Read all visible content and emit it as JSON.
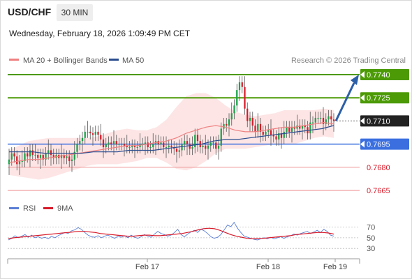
{
  "header": {
    "symbol": "USD/CHF",
    "timeframe": "30 MIN",
    "datetime": "Wednesday, February 18, 2026 1:09:49 PM CET"
  },
  "legend": {
    "ma20": "MA 20 + Bollinger Bands",
    "ma50": "MA 50",
    "credit": "Research © 2026 Trading Central"
  },
  "rsi_legend": {
    "rsi": "RSI",
    "ma": "9MA"
  },
  "colors": {
    "candle_up": "#19a34a",
    "candle_down": "#d81b2a",
    "ma20": "#f08080",
    "ma50": "#2a4d8f",
    "bollinger_fill": "#fde0e0",
    "resistance": "#4c9a05",
    "support_blue": "#3b6fe0",
    "support_red": "#f0a0a0",
    "current_price": "#222222",
    "arrow": "#2b5fa8",
    "rsi_line": "#5b7fd6",
    "rsi_ma": "#d81b2a"
  },
  "chart_data": [
    {
      "type": "candlestick",
      "symbol": "USD/CHF",
      "timeframe": "30 MIN",
      "ylim": [
        0.7655,
        0.7749
      ],
      "x_ticks": [
        "Feb 17",
        "Feb 18",
        "Feb 19"
      ],
      "close": [
        0.7685,
        0.7689,
        0.7687,
        0.7682,
        0.7684,
        0.7684,
        0.7689,
        0.7687,
        0.7691,
        0.7688,
        0.7688,
        0.7686,
        0.7688,
        0.7685,
        0.7689,
        0.7691,
        0.7688,
        0.7686,
        0.7688,
        0.7686,
        0.7688,
        0.7686,
        0.7687,
        0.7684,
        0.7685,
        0.769,
        0.7695,
        0.7697,
        0.7699,
        0.7703,
        0.7703,
        0.7702,
        0.7701,
        0.7703,
        0.7701,
        0.7698,
        0.7693,
        0.7695,
        0.7696,
        0.7695,
        0.7697,
        0.7695,
        0.7695,
        0.7695,
        0.7694,
        0.7693,
        0.7693,
        0.7694,
        0.7693,
        0.7693,
        0.7695,
        0.7695,
        0.7696,
        0.7693,
        0.7693,
        0.7695,
        0.7697,
        0.7695,
        0.7696,
        0.7693,
        0.7693,
        0.7694,
        0.7693,
        0.7692,
        0.769,
        0.7691,
        0.7695,
        0.7697,
        0.7695,
        0.7692,
        0.7693,
        0.7701,
        0.7697,
        0.7693,
        0.7694,
        0.7692,
        0.7694,
        0.7696,
        0.7696,
        0.7692,
        0.7694,
        0.7705,
        0.7708,
        0.7707,
        0.7711,
        0.7715,
        0.772,
        0.773,
        0.7735,
        0.7732,
        0.7718,
        0.771,
        0.7712,
        0.7707,
        0.7703,
        0.7708,
        0.7703,
        0.7701,
        0.7703,
        0.7704,
        0.7701,
        0.77,
        0.7698,
        0.7702,
        0.7699,
        0.7703,
        0.7706,
        0.7703,
        0.7706,
        0.7705,
        0.7707,
        0.7705,
        0.7707,
        0.7706,
        0.7702,
        0.7709,
        0.7709,
        0.7712,
        0.7712,
        0.7712,
        0.7708,
        0.7711,
        0.7713,
        0.7711,
        0.771
      ],
      "ohlc_note": "approximate closes read from the chart",
      "ma20": [
        0.7683,
        0.7684,
        0.7685,
        0.7685,
        0.7686,
        0.7687,
        0.7688,
        0.7689,
        0.769,
        0.7691,
        0.7692,
        0.7693,
        0.7694,
        0.7694,
        0.7695,
        0.7696,
        0.7697,
        0.7699,
        0.7702,
        0.7704,
        0.7706,
        0.7707,
        0.7706,
        0.7704,
        0.7703,
        0.7703,
        0.7704,
        0.7705,
        0.7706,
        0.7706,
        0.7707,
        0.7708,
        0.7709,
        0.7708
      ],
      "ma50": [
        0.769,
        0.769,
        0.769,
        0.7689,
        0.7689,
        0.7689,
        0.7689,
        0.769,
        0.769,
        0.769,
        0.7691,
        0.7691,
        0.7691,
        0.7692,
        0.7693,
        0.7694,
        0.7695,
        0.7697,
        0.7698,
        0.7698,
        0.7699,
        0.77,
        0.7701,
        0.7702,
        0.7703,
        0.7704,
        0.7705,
        0.7707
      ],
      "levels": [
        {
          "value": "0.7740",
          "style": "resistance"
        },
        {
          "value": "0.7725",
          "style": "resistance"
        },
        {
          "value": "0.7710",
          "style": "current"
        },
        {
          "value": "0.7695",
          "style": "support_blue"
        },
        {
          "value": "0.7680",
          "style": "support_red"
        },
        {
          "value": "0.7665",
          "style": "support_red"
        }
      ],
      "forecast_arrow": {
        "from": 0.771,
        "to": 0.774
      }
    },
    {
      "type": "line",
      "title": "RSI",
      "ylim": [
        25,
        80
      ],
      "yticks": [
        "70",
        "50",
        "30"
      ],
      "series": [
        {
          "name": "RSI",
          "values": [
            46,
            49,
            54,
            50,
            53,
            56,
            51,
            55,
            50,
            52,
            49,
            51,
            48,
            53,
            50,
            54,
            57,
            60,
            58,
            63,
            65,
            69,
            66,
            60,
            55,
            52,
            51,
            54,
            50,
            53,
            55,
            52,
            49,
            53,
            51,
            54,
            50,
            55,
            51,
            49,
            52,
            56,
            53,
            51,
            57,
            62,
            58,
            56,
            53,
            55,
            60,
            66,
            56,
            52,
            57,
            61,
            64,
            60,
            66,
            63,
            58,
            52,
            49,
            51,
            56,
            65,
            74,
            71,
            79,
            68,
            60,
            53,
            51,
            49,
            47,
            46,
            48,
            50,
            48,
            51,
            48,
            50,
            52,
            49,
            52,
            54,
            57,
            55,
            58,
            60,
            62,
            58,
            61,
            64,
            60,
            66,
            62,
            55,
            53
          ]
        },
        {
          "name": "9MA",
          "values": [
            48,
            50,
            51,
            52,
            53,
            54,
            55,
            56,
            57,
            58,
            59,
            60,
            61,
            62,
            62,
            61,
            60,
            58,
            57,
            56,
            55,
            54,
            53,
            53,
            54,
            55,
            55,
            54,
            54,
            55,
            56,
            57,
            58,
            60,
            62,
            65,
            67,
            68,
            67,
            64,
            60,
            56,
            53,
            51,
            49,
            48,
            48,
            49,
            50,
            51,
            52,
            53,
            54,
            56,
            57,
            58,
            59,
            60,
            60,
            59,
            57
          ]
        }
      ]
    }
  ]
}
